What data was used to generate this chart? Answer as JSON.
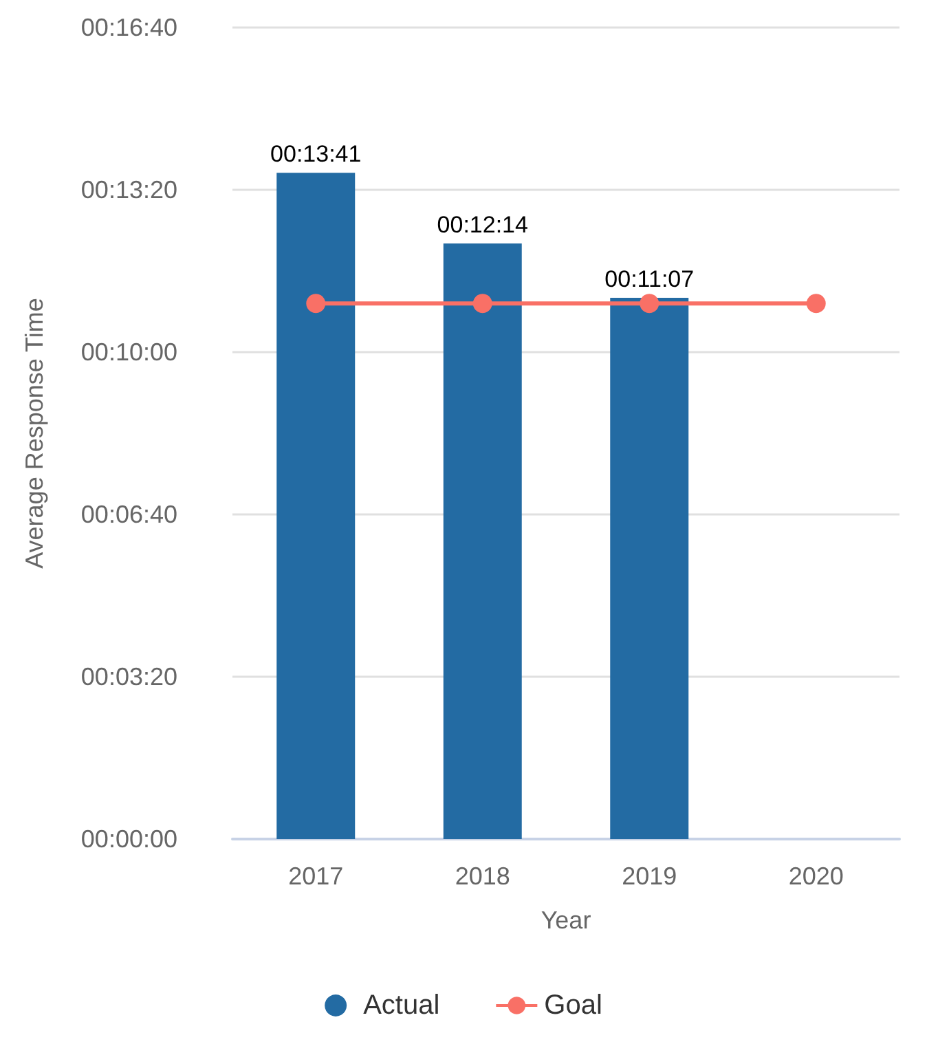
{
  "chart_data": {
    "type": "bar",
    "xlabel": "Year",
    "ylabel": "Average Response Time",
    "categories": [
      "2017",
      "2018",
      "2019",
      "2020"
    ],
    "series": [
      {
        "name": "Actual",
        "color": "#236ba3",
        "values": [
          821,
          734,
          667,
          null
        ],
        "value_labels": [
          "00:13:41",
          "00:12:14",
          "00:11:07",
          null
        ]
      },
      {
        "name": "Goal",
        "type": "line",
        "color": "#f97066",
        "values": [
          660,
          660,
          660,
          660
        ],
        "marker": "circle"
      }
    ],
    "ylim": [
      0,
      1000
    ],
    "yticks": [
      {
        "value": 0,
        "label": "00:00:00"
      },
      {
        "value": 200,
        "label": "00:03:20"
      },
      {
        "value": 400,
        "label": "00:06:40"
      },
      {
        "value": 600,
        "label": "00:10:00"
      },
      {
        "value": 800,
        "label": "00:13:20"
      },
      {
        "value": 1000,
        "label": "00:16:40"
      }
    ],
    "grid": "y",
    "legend": "bottom"
  }
}
